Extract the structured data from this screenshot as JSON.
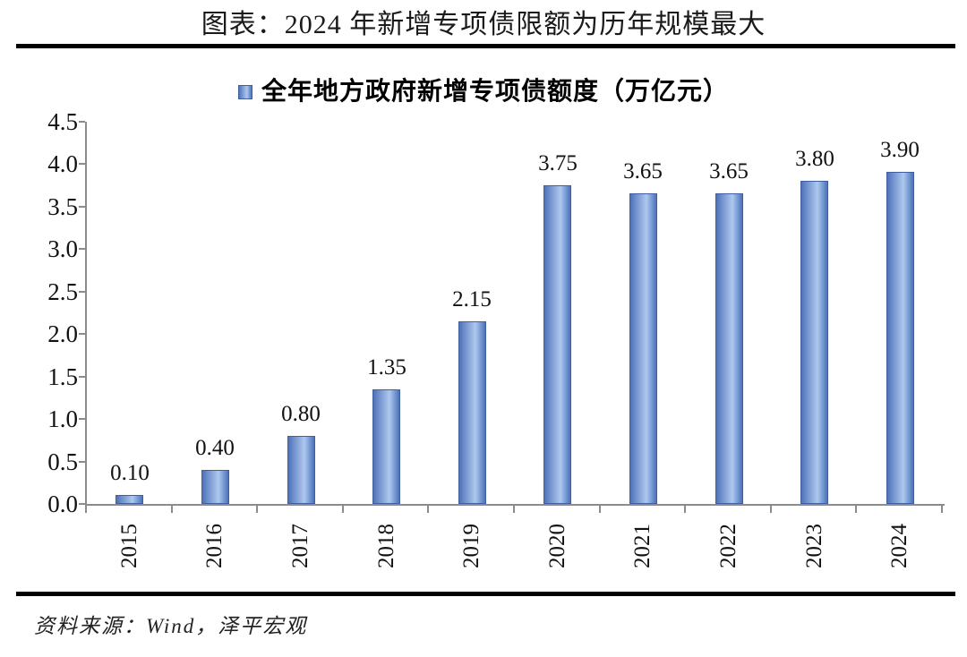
{
  "header": {
    "title": "图表：2024 年新增专项债限额为历年规模最大"
  },
  "legend": {
    "label": "全年地方政府新增专项债额度（万亿元）",
    "marker": "square-icon"
  },
  "footer": {
    "source": "资料来源：Wind，泽平宏观"
  },
  "colors": {
    "bar_edge": "#4f72b8",
    "bar_center": "#aec8ee",
    "bar_border": "#3f5f9e",
    "axis": "#8c8c8c",
    "rule": "#000000"
  },
  "chart_data": {
    "type": "bar",
    "title": "图表：2024 年新增专项债限额为历年规模最大",
    "legend_entries": [
      "全年地方政府新增专项债额度（万亿元）"
    ],
    "legend_position": "top",
    "categories": [
      "2015",
      "2016",
      "2017",
      "2018",
      "2019",
      "2020",
      "2021",
      "2022",
      "2023",
      "2024"
    ],
    "values": [
      0.1,
      0.4,
      0.8,
      1.35,
      2.15,
      3.75,
      3.65,
      3.65,
      3.8,
      3.9
    ],
    "data_labels": [
      "0.10",
      "0.40",
      "0.80",
      "1.35",
      "2.15",
      "3.75",
      "3.65",
      "3.65",
      "3.80",
      "3.90"
    ],
    "xlabel": "",
    "ylabel": "",
    "ylim": [
      0,
      4.5
    ],
    "ytick_step": 0.5,
    "ytick_labels": [
      "0.0",
      "0.5",
      "1.0",
      "1.5",
      "2.0",
      "2.5",
      "3.0",
      "3.5",
      "4.0",
      "4.5"
    ],
    "grid": false,
    "x_label_rotation": -90
  }
}
